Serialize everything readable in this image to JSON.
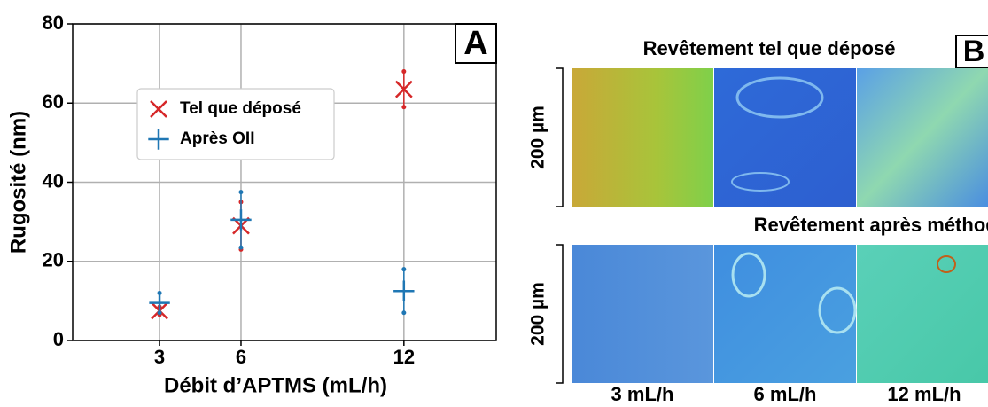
{
  "chart_data": {
    "type": "scatter",
    "panel_label": "A",
    "xlabel": "Débit d’APTMS (mL/h)",
    "ylabel": "Rugosité (nm)",
    "x": [
      3,
      6,
      12
    ],
    "series": [
      {
        "name": "Tel que déposé",
        "color": "#d62728",
        "marker": "x",
        "values": [
          7.5,
          29,
          63.5
        ],
        "errors": [
          1,
          6,
          4.5
        ]
      },
      {
        "name": "Après OII",
        "color": "#1f77b4",
        "marker": "+",
        "values": [
          9.5,
          30.5,
          12.5
        ],
        "errors": [
          2.5,
          7,
          5.5
        ]
      }
    ],
    "xlim": [
      -0.2,
      15.4
    ],
    "xticks": [
      3,
      6,
      12
    ],
    "ylim": [
      0,
      80
    ],
    "yticks": [
      0,
      20,
      40,
      60,
      80
    ],
    "grid": true,
    "legend": "upper left"
  },
  "panel_b": {
    "label": "B",
    "row_titles": [
      "Revêtement tel que déposé",
      "Revêtement après méthode OII"
    ],
    "scale_label": "200 µm",
    "columns": [
      "3 mL/h",
      "6 mL/h",
      "12 mL/h"
    ]
  }
}
